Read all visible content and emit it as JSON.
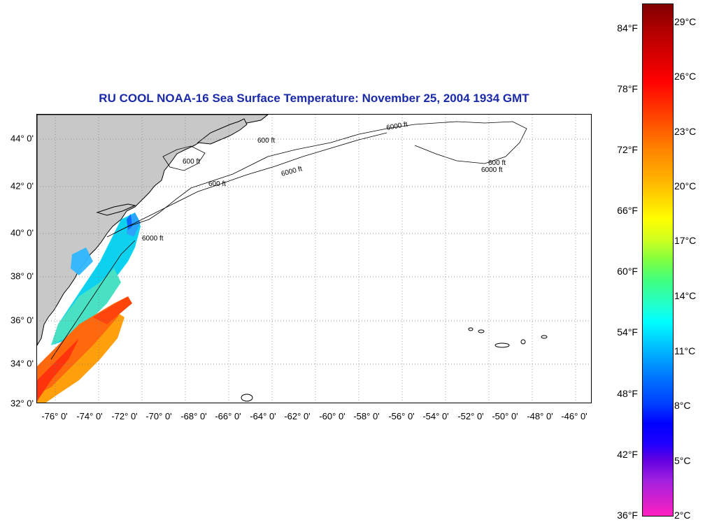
{
  "title": "RU COOL  NOAA-16  Sea Surface Temperature:  November 25, 2004 1934 GMT",
  "axes": {
    "lat_labels": [
      "44° 0'",
      "42° 0'",
      "40° 0'",
      "38° 0'",
      "36° 0'",
      "34° 0'",
      "32° 0'"
    ],
    "lon_labels": [
      "-76° 0'",
      "-74° 0'",
      "-72° 0'",
      "-70° 0'",
      "-68° 0'",
      "-66° 0'",
      "-64° 0'",
      "-62° 0'",
      "-60° 0'",
      "-58° 0'",
      "-56° 0'",
      "-54° 0'",
      "-52° 0'",
      "-50° 0'",
      "-48° 0'",
      "-46° 0'"
    ]
  },
  "contour_labels": [
    "600 ft",
    "6000 ft"
  ],
  "colorbar": {
    "fahrenheit": [
      "84°F",
      "78°F",
      "72°F",
      "66°F",
      "60°F",
      "54°F",
      "48°F",
      "42°F",
      "36°F"
    ],
    "celsius": [
      "29°C",
      "26°C",
      "23°C",
      "20°C",
      "17°C",
      "14°C",
      "11°C",
      "8°C",
      "5°C",
      "2°C"
    ]
  },
  "colors": {
    "land": "#c8c8c8",
    "title": "#1a2aa8",
    "warm": "#ff4400",
    "cool": "#00c0ff"
  }
}
